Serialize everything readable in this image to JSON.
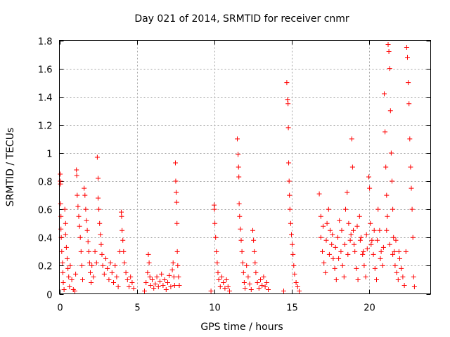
{
  "chart_data": {
    "type": "scatter",
    "title": "Day 021 of 2014, SRMTID for receiver cnmr",
    "xlabel": "GPS time / hours",
    "ylabel": "SRMTID / TECUs",
    "xlim": [
      0,
      24
    ],
    "ylim": [
      0,
      1.8
    ],
    "xticks": [
      0,
      5,
      10,
      15,
      20
    ],
    "yticks": [
      0,
      0.2,
      0.4,
      0.6,
      0.8,
      1,
      1.2,
      1.4,
      1.6,
      1.8
    ],
    "xtick_labels": [
      "0",
      "5",
      "10",
      "15",
      "20"
    ],
    "ytick_labels": [
      "0",
      "0.2",
      "0.4",
      "0.6",
      "0.8",
      "1",
      "1.2",
      "1.4",
      "1.6",
      "1.8"
    ],
    "grid": true,
    "marker": "+",
    "color": "#ff0000",
    "series": [
      {
        "name": "SRMTID",
        "points": [
          [
            0.05,
            0.85
          ],
          [
            0.05,
            0.8
          ],
          [
            0.07,
            0.78
          ],
          [
            0.08,
            0.64
          ],
          [
            0.1,
            0.55
          ],
          [
            0.1,
            0.46
          ],
          [
            0.12,
            0.4
          ],
          [
            0.15,
            0.3
          ],
          [
            0.2,
            0.22
          ],
          [
            0.22,
            0.15
          ],
          [
            0.25,
            0.08
          ],
          [
            0.3,
            0.03
          ],
          [
            0.35,
            0.6
          ],
          [
            0.4,
            0.5
          ],
          [
            0.4,
            0.42
          ],
          [
            0.45,
            0.33
          ],
          [
            0.5,
            0.25
          ],
          [
            0.55,
            0.18
          ],
          [
            0.6,
            0.12
          ],
          [
            0.65,
            0.05
          ],
          [
            0.7,
            0.2
          ],
          [
            0.8,
            0.1
          ],
          [
            0.9,
            0.03
          ],
          [
            1.0,
            0.02
          ],
          [
            1.05,
            0.14
          ],
          [
            1.1,
            0.88
          ],
          [
            1.12,
            0.84
          ],
          [
            1.15,
            0.7
          ],
          [
            1.2,
            0.62
          ],
          [
            1.25,
            0.55
          ],
          [
            1.3,
            0.48
          ],
          [
            1.35,
            0.4
          ],
          [
            1.4,
            0.3
          ],
          [
            1.45,
            0.2
          ],
          [
            1.5,
            0.1
          ],
          [
            1.6,
            0.75
          ],
          [
            1.65,
            0.7
          ],
          [
            1.7,
            0.6
          ],
          [
            1.75,
            0.52
          ],
          [
            1.8,
            0.45
          ],
          [
            1.85,
            0.37
          ],
          [
            1.9,
            0.3
          ],
          [
            1.95,
            0.22
          ],
          [
            2.0,
            0.15
          ],
          [
            2.05,
            0.08
          ],
          [
            2.1,
            0.2
          ],
          [
            2.2,
            0.12
          ],
          [
            2.3,
            0.3
          ],
          [
            2.4,
            0.22
          ],
          [
            2.45,
            0.97
          ],
          [
            2.5,
            0.82
          ],
          [
            2.5,
            0.68
          ],
          [
            2.55,
            0.6
          ],
          [
            2.6,
            0.5
          ],
          [
            2.65,
            0.42
          ],
          [
            2.7,
            0.35
          ],
          [
            2.75,
            0.28
          ],
          [
            2.8,
            0.2
          ],
          [
            2.9,
            0.14
          ],
          [
            3.0,
            0.25
          ],
          [
            3.1,
            0.18
          ],
          [
            3.2,
            0.1
          ],
          [
            3.3,
            0.22
          ],
          [
            3.4,
            0.15
          ],
          [
            3.5,
            0.08
          ],
          [
            3.6,
            0.2
          ],
          [
            3.7,
            0.12
          ],
          [
            3.8,
            0.05
          ],
          [
            3.9,
            0.3
          ],
          [
            4.0,
            0.58
          ],
          [
            4.02,
            0.55
          ],
          [
            4.05,
            0.45
          ],
          [
            4.1,
            0.38
          ],
          [
            4.15,
            0.3
          ],
          [
            4.2,
            0.22
          ],
          [
            4.3,
            0.15
          ],
          [
            4.4,
            0.1
          ],
          [
            4.5,
            0.05
          ],
          [
            4.6,
            0.12
          ],
          [
            4.7,
            0.08
          ],
          [
            4.8,
            0.04
          ],
          [
            5.5,
            0.02
          ],
          [
            5.6,
            0.08
          ],
          [
            5.7,
            0.15
          ],
          [
            5.75,
            0.28
          ],
          [
            5.8,
            0.22
          ],
          [
            5.85,
            0.12
          ],
          [
            5.9,
            0.06
          ],
          [
            6.0,
            0.1
          ],
          [
            6.1,
            0.04
          ],
          [
            6.2,
            0.07
          ],
          [
            6.3,
            0.12
          ],
          [
            6.4,
            0.05
          ],
          [
            6.5,
            0.09
          ],
          [
            6.6,
            0.14
          ],
          [
            6.7,
            0.06
          ],
          [
            6.8,
            0.1
          ],
          [
            6.9,
            0.03
          ],
          [
            7.0,
            0.08
          ],
          [
            7.1,
            0.13
          ],
          [
            7.2,
            0.05
          ],
          [
            7.3,
            0.17
          ],
          [
            7.35,
            0.22
          ],
          [
            7.4,
            0.12
          ],
          [
            7.45,
            0.06
          ],
          [
            7.5,
            0.93
          ],
          [
            7.52,
            0.8
          ],
          [
            7.55,
            0.72
          ],
          [
            7.58,
            0.65
          ],
          [
            7.6,
            0.5
          ],
          [
            7.62,
            0.3
          ],
          [
            7.65,
            0.2
          ],
          [
            7.7,
            0.12
          ],
          [
            7.75,
            0.06
          ],
          [
            9.8,
            0.02
          ],
          [
            10.0,
            0.63
          ],
          [
            10.02,
            0.6
          ],
          [
            10.05,
            0.5
          ],
          [
            10.1,
            0.4
          ],
          [
            10.15,
            0.3
          ],
          [
            10.2,
            0.22
          ],
          [
            10.25,
            0.15
          ],
          [
            10.3,
            0.1
          ],
          [
            10.4,
            0.05
          ],
          [
            10.5,
            0.12
          ],
          [
            10.6,
            0.08
          ],
          [
            10.7,
            0.04
          ],
          [
            10.8,
            0.1
          ],
          [
            10.9,
            0.05
          ],
          [
            11.0,
            0.02
          ],
          [
            11.5,
            1.1
          ],
          [
            11.55,
            0.99
          ],
          [
            11.58,
            0.9
          ],
          [
            11.6,
            0.83
          ],
          [
            11.62,
            0.64
          ],
          [
            11.65,
            0.55
          ],
          [
            11.7,
            0.46
          ],
          [
            11.75,
            0.38
          ],
          [
            11.8,
            0.3
          ],
          [
            11.85,
            0.22
          ],
          [
            11.9,
            0.15
          ],
          [
            11.95,
            0.08
          ],
          [
            12.0,
            0.04
          ],
          [
            12.1,
            0.2
          ],
          [
            12.2,
            0.12
          ],
          [
            12.3,
            0.07
          ],
          [
            12.4,
            0.03
          ],
          [
            12.5,
            0.45
          ],
          [
            12.55,
            0.38
          ],
          [
            12.6,
            0.3
          ],
          [
            12.65,
            0.22
          ],
          [
            12.7,
            0.15
          ],
          [
            12.8,
            0.08
          ],
          [
            12.9,
            0.04
          ],
          [
            13.0,
            0.1
          ],
          [
            13.1,
            0.06
          ],
          [
            13.2,
            0.12
          ],
          [
            13.3,
            0.05
          ],
          [
            13.4,
            0.08
          ],
          [
            13.5,
            0.03
          ],
          [
            14.5,
            0.02
          ],
          [
            14.7,
            1.5
          ],
          [
            14.75,
            1.38
          ],
          [
            14.78,
            1.35
          ],
          [
            14.8,
            1.18
          ],
          [
            14.82,
            0.93
          ],
          [
            14.85,
            0.8
          ],
          [
            14.87,
            0.7
          ],
          [
            14.9,
            0.6
          ],
          [
            14.95,
            0.5
          ],
          [
            15.0,
            0.42
          ],
          [
            15.05,
            0.35
          ],
          [
            15.1,
            0.28
          ],
          [
            15.15,
            0.2
          ],
          [
            15.2,
            0.14
          ],
          [
            15.3,
            0.08
          ],
          [
            15.4,
            0.05
          ],
          [
            15.5,
            0.02
          ],
          [
            16.8,
            0.71
          ],
          [
            16.9,
            0.4
          ],
          [
            17.0,
            0.3
          ],
          [
            17.1,
            0.22
          ],
          [
            17.2,
            0.15
          ],
          [
            17.3,
            0.5
          ],
          [
            17.4,
            0.6
          ],
          [
            17.5,
            0.45
          ],
          [
            17.6,
            0.35
          ],
          [
            17.7,
            0.25
          ],
          [
            17.8,
            0.18
          ],
          [
            17.9,
            0.1
          ],
          [
            18.0,
            0.4
          ],
          [
            18.1,
            0.52
          ],
          [
            18.2,
            0.3
          ],
          [
            18.3,
            0.2
          ],
          [
            18.4,
            0.12
          ],
          [
            18.5,
            0.6
          ],
          [
            18.6,
            0.72
          ],
          [
            18.7,
            0.5
          ],
          [
            18.8,
            0.38
          ],
          [
            18.9,
            1.1
          ],
          [
            18.95,
            0.9
          ],
          [
            19.0,
            0.45
          ],
          [
            19.1,
            0.3
          ],
          [
            19.2,
            0.18
          ],
          [
            19.3,
            0.1
          ],
          [
            19.4,
            0.55
          ],
          [
            19.5,
            0.4
          ],
          [
            19.6,
            0.28
          ],
          [
            19.7,
            0.2
          ],
          [
            19.8,
            0.12
          ],
          [
            19.9,
            0.32
          ],
          [
            20.0,
            0.83
          ],
          [
            20.05,
            0.75
          ],
          [
            20.1,
            0.5
          ],
          [
            20.2,
            0.38
          ],
          [
            20.3,
            0.28
          ],
          [
            20.4,
            0.18
          ],
          [
            20.5,
            0.1
          ],
          [
            20.6,
            0.6
          ],
          [
            20.7,
            0.45
          ],
          [
            20.8,
            0.3
          ],
          [
            20.9,
            0.2
          ],
          [
            21.0,
            1.42
          ],
          [
            21.05,
            1.15
          ],
          [
            21.1,
            0.9
          ],
          [
            21.15,
            0.7
          ],
          [
            21.2,
            0.55
          ],
          [
            21.25,
            1.77
          ],
          [
            21.3,
            1.72
          ],
          [
            21.35,
            1.6
          ],
          [
            21.4,
            1.3
          ],
          [
            21.45,
            1.0
          ],
          [
            21.5,
            0.8
          ],
          [
            21.55,
            0.6
          ],
          [
            21.6,
            0.4
          ],
          [
            21.65,
            0.3
          ],
          [
            21.7,
            0.2
          ],
          [
            21.8,
            0.15
          ],
          [
            21.9,
            0.1
          ],
          [
            22.0,
            0.25
          ],
          [
            22.1,
            0.18
          ],
          [
            22.2,
            0.12
          ],
          [
            22.3,
            0.06
          ],
          [
            22.4,
            0.3
          ],
          [
            22.45,
            1.75
          ],
          [
            22.5,
            1.68
          ],
          [
            22.55,
            1.5
          ],
          [
            22.6,
            1.35
          ],
          [
            22.65,
            1.1
          ],
          [
            22.7,
            0.9
          ],
          [
            22.75,
            0.75
          ],
          [
            22.8,
            0.6
          ],
          [
            22.85,
            0.4
          ],
          [
            22.9,
            0.12
          ],
          [
            22.95,
            0.05
          ],
          [
            16.9,
            0.55
          ],
          [
            17.05,
            0.48
          ],
          [
            17.25,
            0.38
          ],
          [
            17.45,
            0.28
          ],
          [
            17.65,
            0.42
          ],
          [
            17.85,
            0.33
          ],
          [
            18.05,
            0.25
          ],
          [
            18.25,
            0.45
          ],
          [
            18.45,
            0.35
          ],
          [
            18.65,
            0.28
          ],
          [
            18.85,
            0.42
          ],
          [
            19.05,
            0.35
          ],
          [
            19.25,
            0.48
          ],
          [
            19.45,
            0.38
          ],
          [
            19.65,
            0.3
          ],
          [
            19.85,
            0.42
          ],
          [
            20.15,
            0.35
          ],
          [
            20.35,
            0.45
          ],
          [
            20.55,
            0.38
          ],
          [
            20.75,
            0.25
          ],
          [
            20.95,
            0.33
          ],
          [
            21.15,
            0.45
          ],
          [
            21.35,
            0.35
          ],
          [
            21.55,
            0.28
          ],
          [
            21.75,
            0.38
          ],
          [
            21.95,
            0.3
          ]
        ]
      }
    ]
  }
}
